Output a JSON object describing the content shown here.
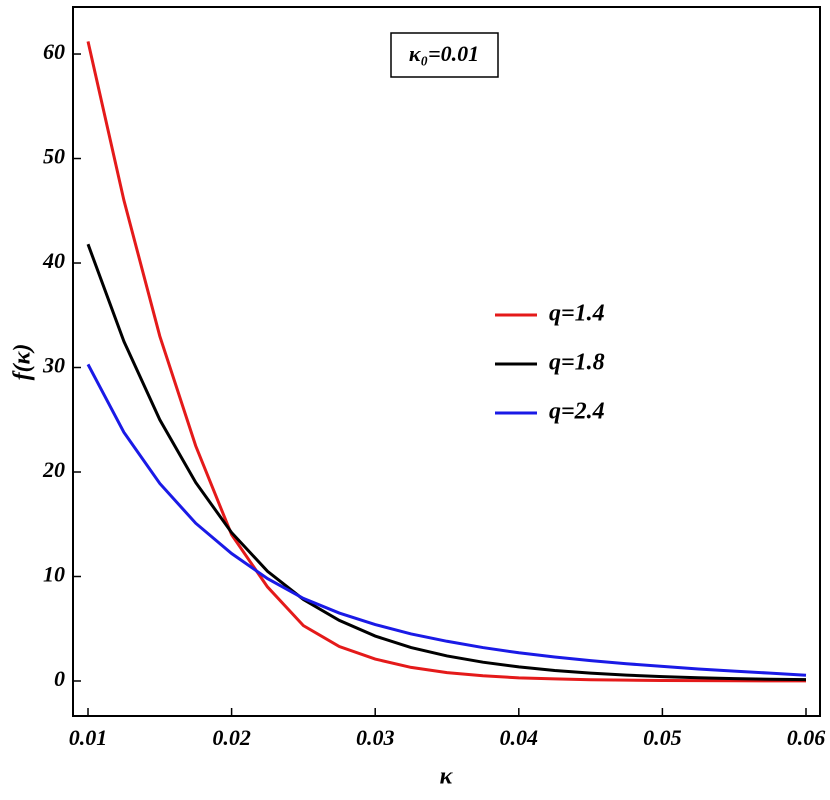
{
  "chart_data": {
    "type": "line",
    "annotation": "κ₀=0.01",
    "xlabel": "κ",
    "ylabel": "f(κ)",
    "x": [
      0.01,
      0.0125,
      0.015,
      0.0175,
      0.02,
      0.0225,
      0.025,
      0.0275,
      0.03,
      0.0325,
      0.035,
      0.0375,
      0.04,
      0.0425,
      0.045,
      0.0475,
      0.05,
      0.0525,
      0.055,
      0.0575,
      0.06
    ],
    "series": [
      {
        "name": "q=1.4",
        "color": "#e41a1a",
        "values": [
          61.2,
          46,
          33,
          22.5,
          14,
          9,
          5.3,
          3.3,
          2.1,
          1.3,
          0.8,
          0.5,
          0.3,
          0.2,
          0.12,
          0.08,
          0.05,
          0.03,
          0.02,
          0.01,
          0.01
        ]
      },
      {
        "name": "q=1.8",
        "color": "#000000",
        "values": [
          41.8,
          32.5,
          25,
          19,
          14.2,
          10.5,
          7.8,
          5.8,
          4.3,
          3.2,
          2.4,
          1.8,
          1.35,
          1.0,
          0.75,
          0.56,
          0.42,
          0.31,
          0.23,
          0.17,
          0.13
        ]
      },
      {
        "name": "q=2.4",
        "color": "#1a1ae6",
        "values": [
          30.3,
          23.8,
          18.9,
          15.1,
          12.2,
          9.8,
          7.9,
          6.5,
          5.4,
          4.5,
          3.8,
          3.2,
          2.7,
          2.3,
          1.95,
          1.65,
          1.4,
          1.15,
          0.95,
          0.75,
          0.55
        ]
      }
    ],
    "xlim": [
      0.008955,
      0.060975
    ],
    "ylim": [
      -3.35,
      64.5
    ],
    "xticks": [
      0.01,
      0.02,
      0.03,
      0.04,
      0.05,
      0.06
    ],
    "yticks": [
      0,
      10,
      20,
      30,
      40,
      50,
      60
    ],
    "grid": false,
    "legend": "right"
  }
}
